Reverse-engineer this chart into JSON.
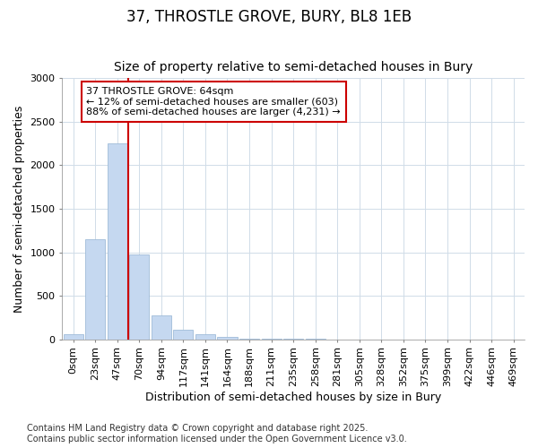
{
  "title": "37, THROSTLE GROVE, BURY, BL8 1EB",
  "subtitle": "Size of property relative to semi-detached houses in Bury",
  "xlabel": "Distribution of semi-detached houses by size in Bury",
  "ylabel": "Number of semi-detached properties",
  "categories": [
    "0sqm",
    "23sqm",
    "47sqm",
    "70sqm",
    "94sqm",
    "117sqm",
    "141sqm",
    "164sqm",
    "188sqm",
    "211sqm",
    "235sqm",
    "258sqm",
    "281sqm",
    "305sqm",
    "328sqm",
    "352sqm",
    "375sqm",
    "399sqm",
    "422sqm",
    "446sqm",
    "469sqm"
  ],
  "values": [
    60,
    1150,
    2250,
    970,
    270,
    110,
    55,
    25,
    10,
    3,
    2,
    5,
    1,
    0,
    0,
    0,
    0,
    0,
    0,
    0,
    0
  ],
  "bar_color": "#c5d8f0",
  "bar_edge_color": "#a0bcd8",
  "property_line_color": "#cc0000",
  "annotation_text": "37 THROSTLE GROVE: 64sqm\n← 12% of semi-detached houses are smaller (603)\n88% of semi-detached houses are larger (4,231) →",
  "annotation_box_edgecolor": "#cc0000",
  "ylim": [
    0,
    3000
  ],
  "yticks": [
    0,
    500,
    1000,
    1500,
    2000,
    2500,
    3000
  ],
  "footnote1": "Contains HM Land Registry data © Crown copyright and database right 2025.",
  "footnote2": "Contains public sector information licensed under the Open Government Licence v3.0.",
  "bg_color": "#ffffff",
  "plot_bg_color": "#ffffff",
  "grid_color": "#d0dce8",
  "title_fontsize": 12,
  "subtitle_fontsize": 10,
  "tick_fontsize": 8,
  "label_fontsize": 9,
  "footnote_fontsize": 7
}
